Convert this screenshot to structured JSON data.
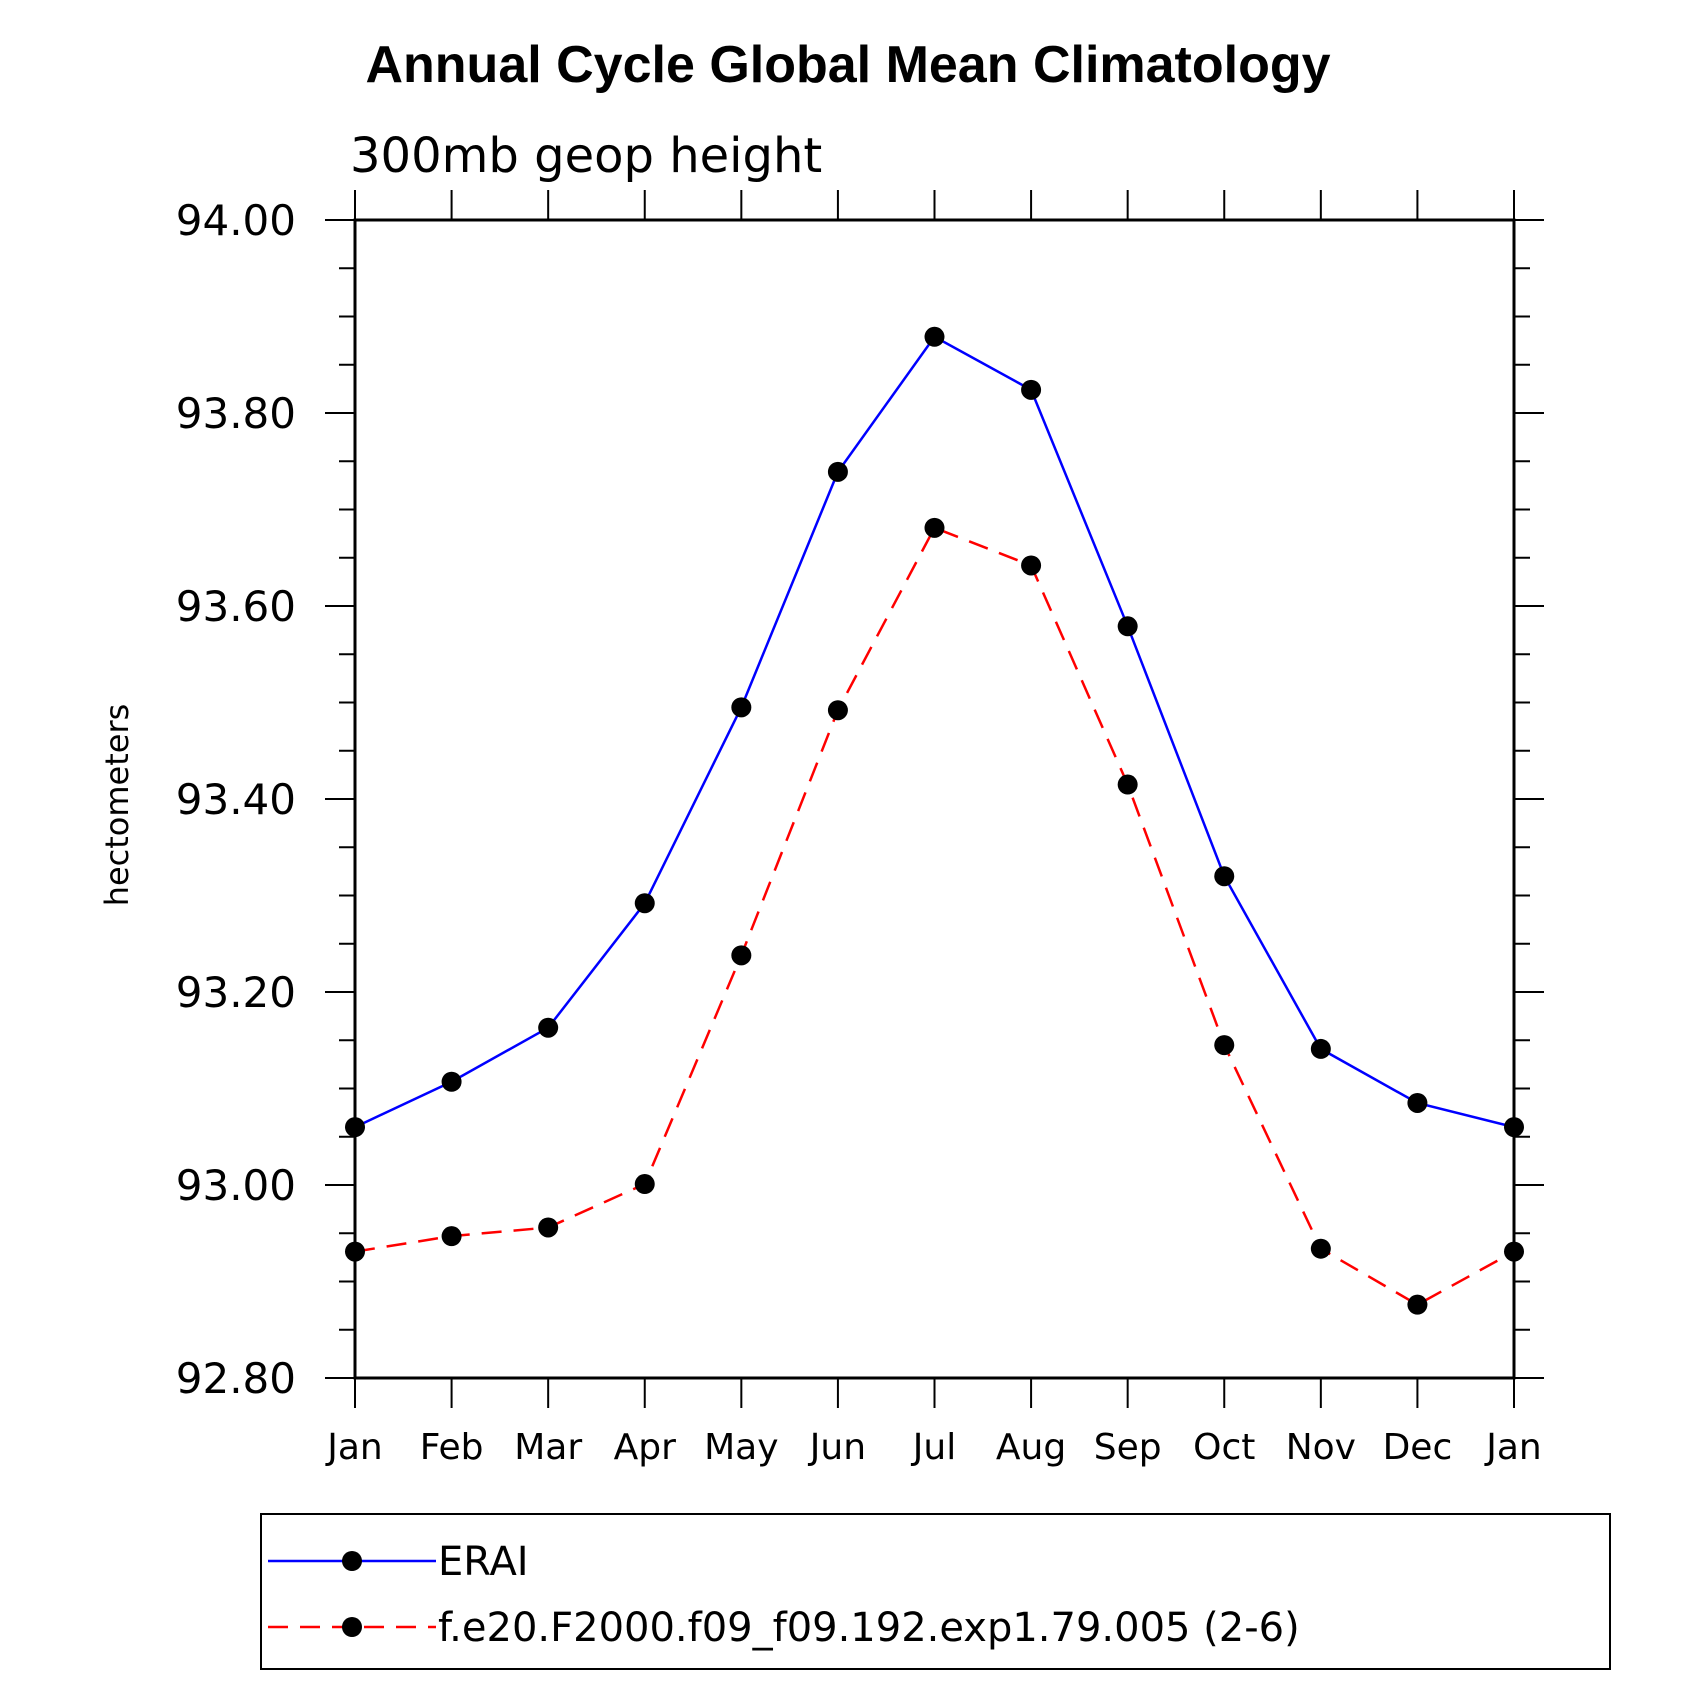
{
  "chart_data": {
    "type": "line",
    "title": "Annual Cycle Global Mean Climatology",
    "subtitle": "300mb geop height",
    "ylabel": "hectometers",
    "categories": [
      "Jan",
      "Feb",
      "Mar",
      "Apr",
      "May",
      "Jun",
      "Jul",
      "Aug",
      "Sep",
      "Oct",
      "Nov",
      "Dec",
      "Jan"
    ],
    "ylim": [
      92.8,
      94.0
    ],
    "yticks": [
      "92.80",
      "93.00",
      "93.20",
      "93.40",
      "93.60",
      "93.80",
      "94.00"
    ],
    "grid": false,
    "legend_position": "bottom",
    "series": [
      {
        "name": "ERAI",
        "color": "#0000ff",
        "line_style": "solid",
        "marker": "filled-circle",
        "values": [
          93.06,
          93.107,
          93.163,
          93.292,
          93.495,
          93.739,
          93.879,
          93.824,
          93.579,
          93.32,
          93.141,
          93.085,
          93.06
        ]
      },
      {
        "name": "f.e20.F2000.f09_f09.192.exp1.79.005 (2-6)",
        "color": "#ff0000",
        "line_style": "dashed",
        "marker": "filled-circle",
        "values": [
          92.931,
          92.947,
          92.956,
          93.001,
          93.238,
          93.492,
          93.681,
          93.642,
          93.415,
          93.145,
          92.934,
          92.876,
          92.931
        ]
      }
    ]
  }
}
